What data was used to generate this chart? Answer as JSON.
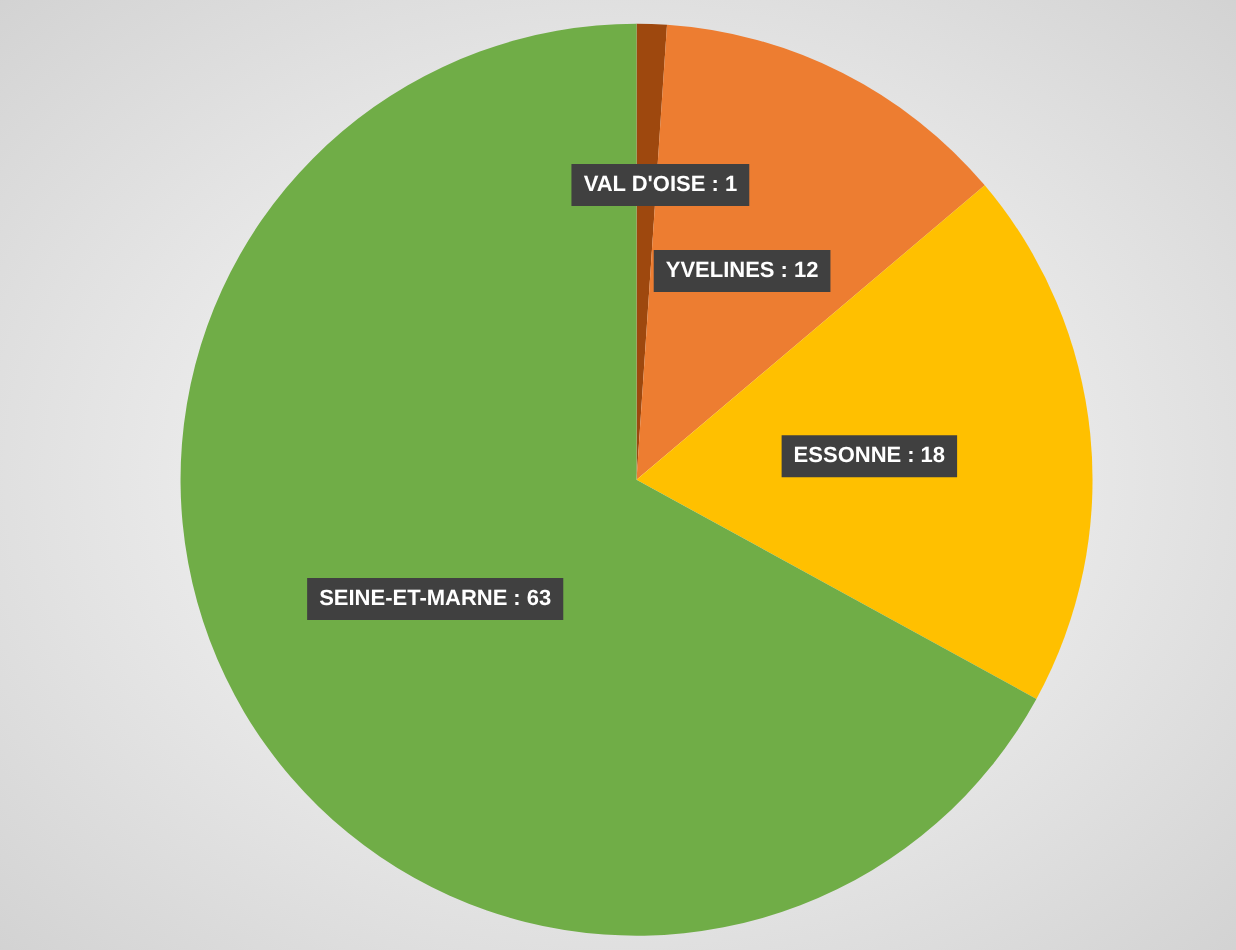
{
  "chart_data": {
    "type": "pie",
    "categories": [
      "VAL D'OISE",
      "YVELINES",
      "ESSONNE",
      "SEINE-ET-MARNE"
    ],
    "values": [
      1,
      12,
      18,
      63
    ],
    "value_labels": [
      ": 1",
      ": 12",
      ": 18",
      ": 63"
    ],
    "colors": [
      "#9e480e",
      "#ed7d31",
      "#ffc000",
      "#70ad47"
    ],
    "legend": false
  }
}
